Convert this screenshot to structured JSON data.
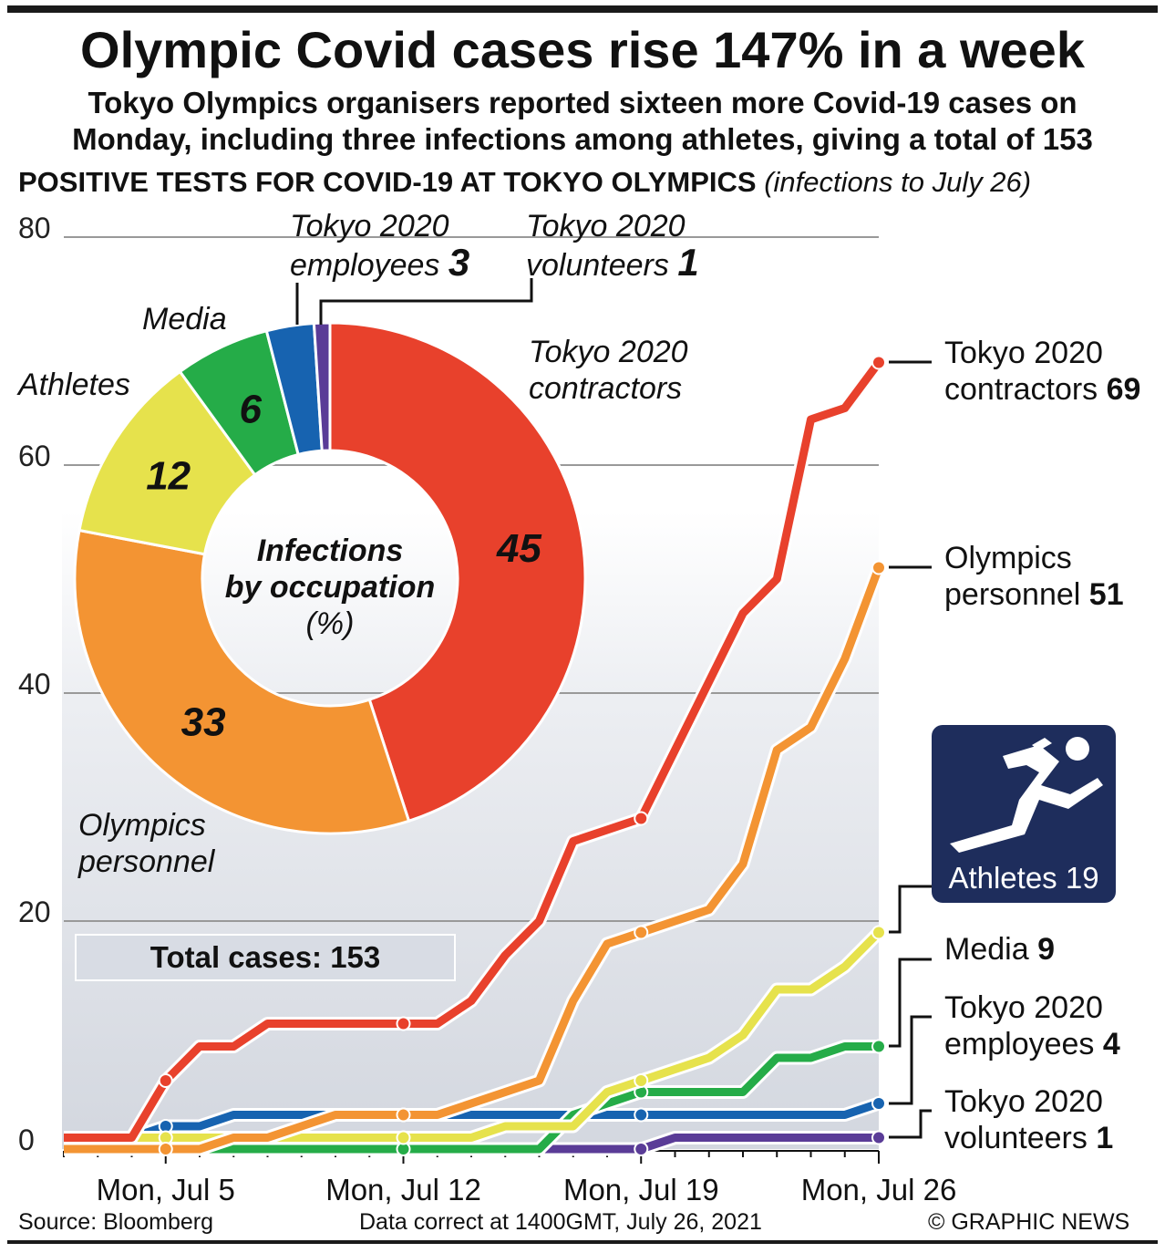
{
  "title": "Olympic Covid cases rise 147% in a week",
  "subtitle_line1": "Tokyo Olympics organisers reported sixteen more Covid-19 cases on",
  "subtitle_line2": "Monday, including three infections among athletes, giving a total of 153",
  "heading": "POSITIVE TESTS FOR COVID-19 AT TOKYO OLYMPICS",
  "heading_note": "(infections to July 26)",
  "total_box": "Total cases: 153",
  "athlete_badge": "Athletes 19",
  "footer": {
    "source": "Source: Bloomberg",
    "note": "Data correct at 1400GMT, July 26, 2021",
    "credit": "© GRAPHIC NEWS"
  },
  "end_labels": [
    {
      "name": "Tokyo 2020",
      "name2": "contractors",
      "value": "69"
    },
    {
      "name": "Olympics",
      "name2": "personnel",
      "value": "51"
    },
    {
      "name": "Media",
      "value": "9"
    },
    {
      "name": "Tokyo 2020",
      "name2": "employees",
      "value": "4"
    },
    {
      "name": "Tokyo 2020",
      "name2": "volunteers",
      "value": "1"
    }
  ],
  "pie_labels": {
    "employees1": "Tokyo 2020",
    "employees2": "employees",
    "employees_v": "3",
    "volunteers1": "Tokyo 2020",
    "volunteers2": "volunteers",
    "volunteers_v": "1",
    "media": "Media",
    "athletes": "Athletes",
    "contractors1": "Tokyo 2020",
    "contractors2": "contractors",
    "personnel1": "Olympics",
    "personnel2": "personnel",
    "center1": "Infections",
    "center2": "by occupation",
    "center3": "(%)"
  },
  "chart_data": [
    {
      "type": "line",
      "title": "Positive tests for Covid-19 at Tokyo Olympics",
      "ylim": [
        0,
        80
      ],
      "yticks": [
        "0",
        "20",
        "40",
        "60",
        "80"
      ],
      "xtick_labels": [
        "Mon, Jul 5",
        "Mon, Jul 12",
        "Mon, Jul 19",
        "Mon, Jul 26"
      ],
      "x": [
        "Jul 2",
        "Jul 3",
        "Jul 4",
        "Jul 5",
        "Jul 6",
        "Jul 7",
        "Jul 8",
        "Jul 9",
        "Jul 10",
        "Jul 11",
        "Jul 12",
        "Jul 13",
        "Jul 14",
        "Jul 15",
        "Jul 16",
        "Jul 17",
        "Jul 18",
        "Jul 19",
        "Jul 20",
        "Jul 21",
        "Jul 22",
        "Jul 23",
        "Jul 24",
        "Jul 25",
        "Jul 26"
      ],
      "series": [
        {
          "name": "Tokyo 2020 contractors",
          "color": "#e8412c",
          "values": [
            1,
            1,
            1,
            6,
            9,
            9,
            11,
            11,
            11,
            11,
            11,
            11,
            13,
            17,
            20,
            27,
            28,
            29,
            35,
            41,
            47,
            50,
            64,
            65,
            69
          ]
        },
        {
          "name": "Olympics personnel",
          "color": "#f39433",
          "values": [
            0,
            0,
            0,
            0,
            0,
            1,
            1,
            2,
            3,
            3,
            3,
            3,
            4,
            5,
            6,
            13,
            18,
            19,
            20,
            21,
            25,
            35,
            37,
            43,
            51
          ]
        },
        {
          "name": "Athletes",
          "color": "#e6e24c",
          "values": [
            1,
            1,
            1,
            1,
            1,
            1,
            1,
            1,
            1,
            1,
            1,
            1,
            1,
            2,
            2,
            2,
            5,
            6,
            7,
            8,
            10,
            14,
            14,
            16,
            19
          ]
        },
        {
          "name": "Media",
          "color": "#25ac48",
          "values": [
            0,
            0,
            0,
            0,
            0,
            0,
            0,
            0,
            0,
            0,
            0,
            0,
            0,
            0,
            0,
            3,
            4,
            5,
            5,
            5,
            5,
            8,
            8,
            9,
            9
          ]
        },
        {
          "name": "Tokyo 2020 employees",
          "color": "#1763b0",
          "values": [
            null,
            null,
            1,
            2,
            2,
            3,
            3,
            3,
            3,
            3,
            3,
            3,
            3,
            3,
            3,
            3,
            3,
            3,
            3,
            3,
            3,
            3,
            3,
            3,
            4
          ]
        },
        {
          "name": "Tokyo 2020 volunteers",
          "color": "#5a3c97",
          "values": [
            null,
            null,
            null,
            null,
            null,
            0,
            0,
            0,
            0,
            0,
            0,
            0,
            0,
            0,
            0,
            0,
            0,
            0,
            1,
            1,
            1,
            1,
            1,
            1,
            1
          ]
        }
      ]
    },
    {
      "type": "pie",
      "title": "Infections by occupation (%)",
      "slices": [
        {
          "name": "Tokyo 2020 contractors",
          "value": 45,
          "color": "#e8412c",
          "show": true
        },
        {
          "name": "Olympics personnel",
          "value": 33,
          "color": "#f39433",
          "show": true
        },
        {
          "name": "Athletes",
          "value": 12,
          "color": "#e6e24c",
          "show": true
        },
        {
          "name": "Media",
          "value": 6,
          "color": "#25ac48",
          "show": true
        },
        {
          "name": "Tokyo 2020 employees",
          "value": 3,
          "color": "#1763b0",
          "show": false
        },
        {
          "name": "Tokyo 2020 volunteers",
          "value": 1,
          "color": "#5a3c97",
          "show": false
        }
      ]
    }
  ]
}
